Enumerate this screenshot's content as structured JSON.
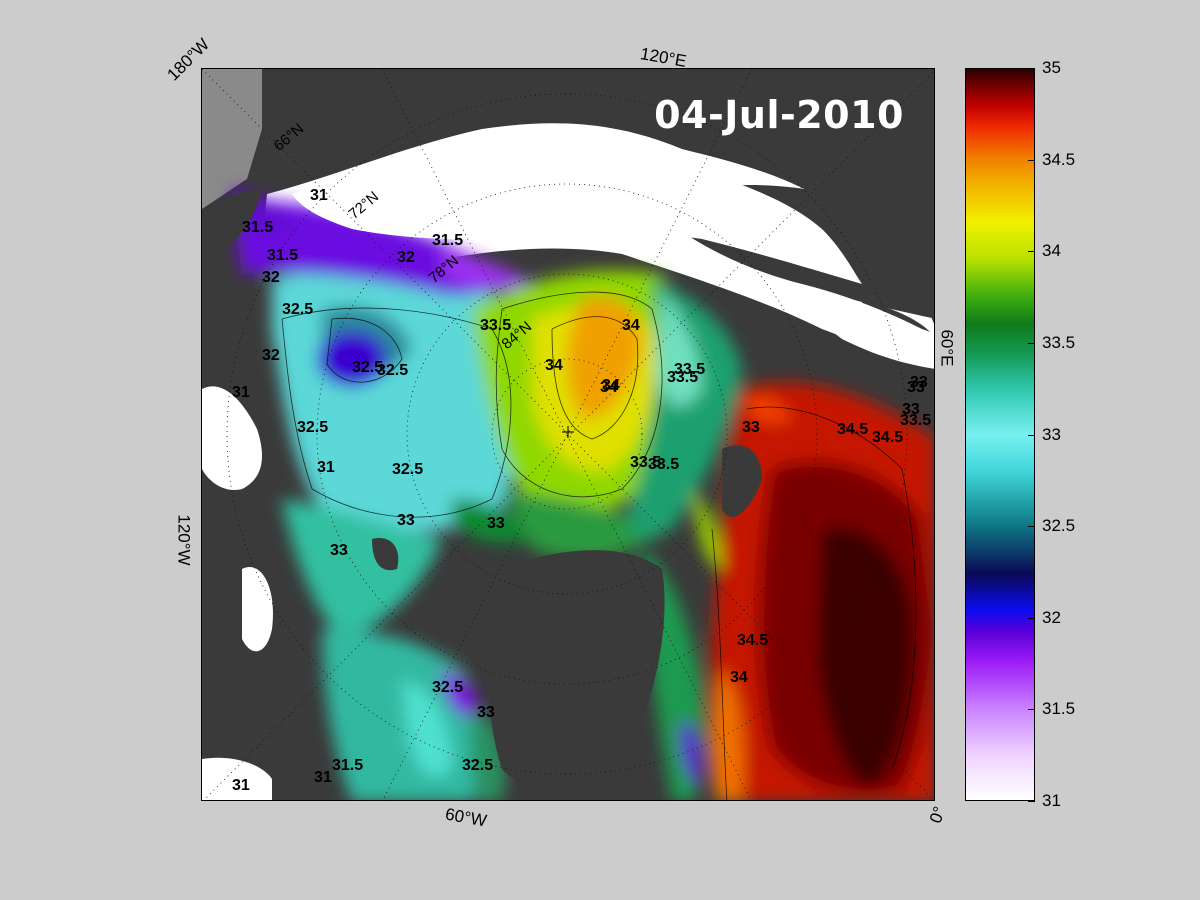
{
  "date": "04-Jul-2010",
  "longitude_labels": [
    "180°W",
    "120°E",
    "60°E",
    "0°",
    "60°W",
    "120°W"
  ],
  "latitude_labels": [
    "66°N",
    "72°N",
    "78°N",
    "84°N"
  ],
  "colorbar": {
    "ticks": [
      "31",
      "31.5",
      "32",
      "32.5",
      "33",
      "33.5",
      "34",
      "34.5",
      "35"
    ],
    "min": 31,
    "max": 35
  },
  "contour_labels": [
    "31",
    "31.5",
    "31.5",
    "31.5",
    "32",
    "32",
    "32.5",
    "32.5",
    "32.5",
    "32.5",
    "32",
    "32.5",
    "33",
    "33",
    "33",
    "33.5",
    "33.5",
    "33.5",
    "34",
    "34",
    "34",
    "34",
    "33.5",
    "33.5",
    "34.5",
    "34.5",
    "34",
    "33",
    "33",
    "33",
    "32.5",
    "32.5",
    "31",
    "31",
    "31.5",
    "31",
    "31",
    "33",
    "33.5",
    "34.5",
    "33"
  ],
  "colors": {
    "land": "#3a3a3a",
    "ice": "#ffffff",
    "no_data": "#8a8a8a",
    "figure_bg": "#cccccc"
  }
}
